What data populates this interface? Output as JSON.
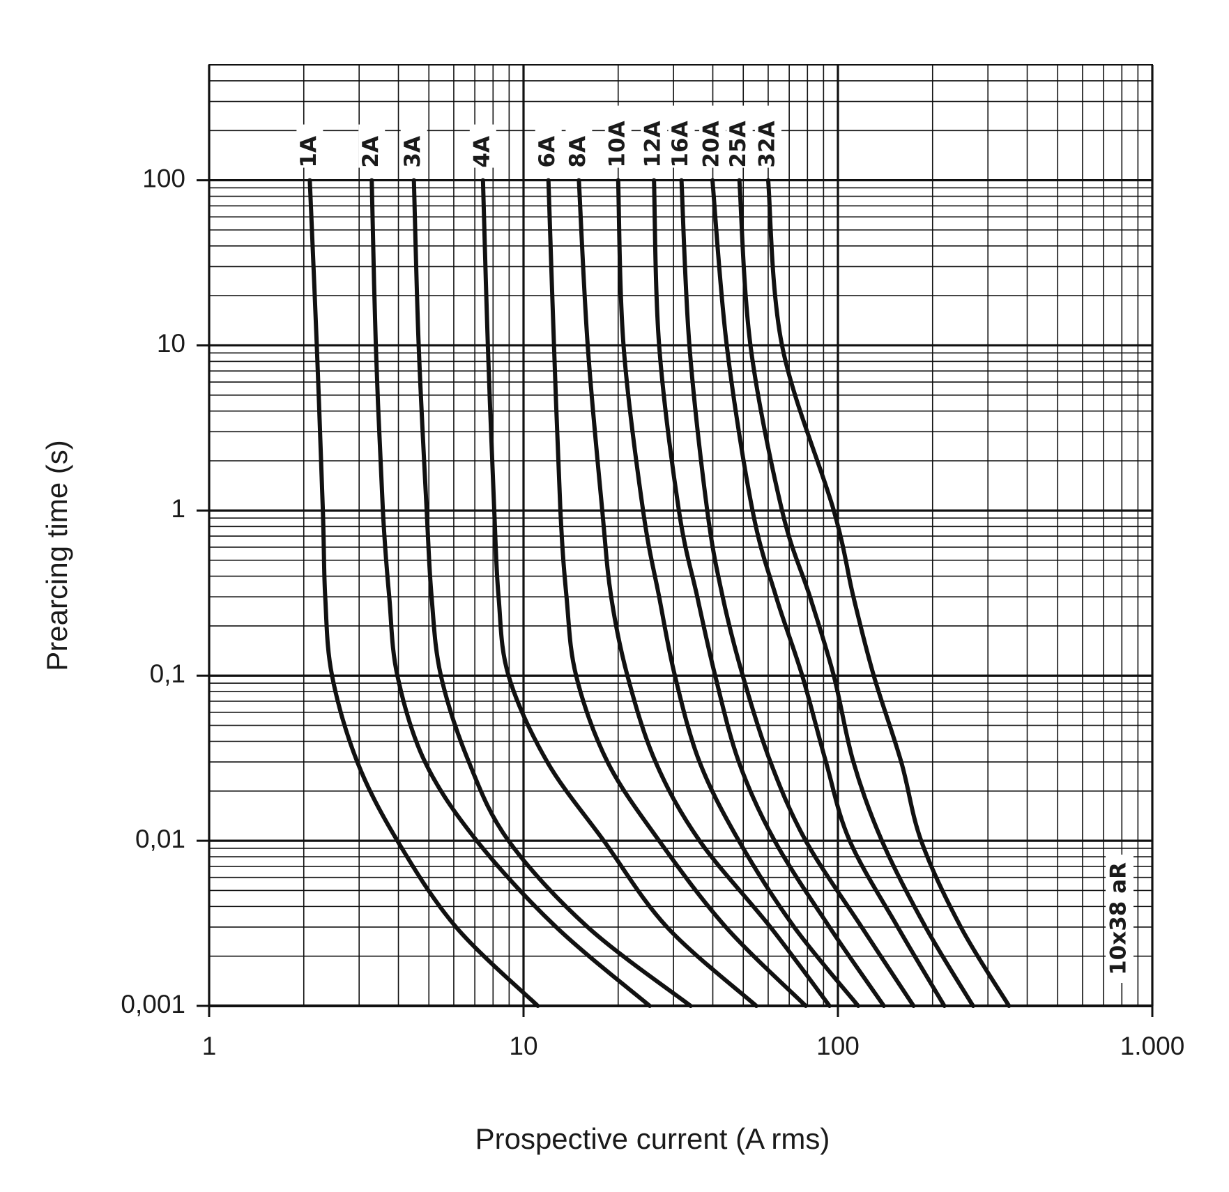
{
  "chart_data": {
    "type": "line",
    "x_label": "Prospective current (A rms)",
    "y_label": "Prearcing time (s)",
    "annotation": "10x38 aR",
    "xlim": [
      1,
      1000
    ],
    "ylim": [
      0.001,
      500
    ],
    "xlog": true,
    "ylog": true,
    "grid": true,
    "minor_grid": true,
    "color": "#111111",
    "xticks": [
      1,
      10,
      100,
      {
        "value": 1000,
        "label": "1.000"
      }
    ],
    "yticks": [
      {
        "value": 0.001,
        "label": "0,001"
      },
      {
        "value": 0.01,
        "label": "0,01"
      },
      {
        "value": 0.1,
        "label": "0,1"
      },
      1,
      10,
      100
    ],
    "series": [
      {
        "name": "1A",
        "x": [
          2.09,
          2.2,
          2.3,
          2.34,
          2.46,
          2.96,
          3.97,
          6.1,
          11.1
        ],
        "values": [
          100,
          10,
          1,
          0.3,
          0.1,
          0.03,
          0.01,
          0.003,
          0.001
        ]
      },
      {
        "name": "2A",
        "x": [
          3.29,
          3.39,
          3.57,
          3.74,
          3.97,
          4.86,
          7.1,
          12.7,
          25.2
        ],
        "values": [
          100,
          10,
          1,
          0.3,
          0.1,
          0.03,
          0.01,
          0.003,
          0.001
        ]
      },
      {
        "name": "3A",
        "x": [
          4.48,
          4.64,
          4.92,
          5.1,
          5.46,
          6.7,
          8.96,
          16,
          34
        ],
        "values": [
          100,
          10,
          1,
          0.3,
          0.1,
          0.03,
          0.01,
          0.003,
          0.001
        ]
      },
      {
        "name": "4A",
        "x": [
          7.43,
          7.7,
          8.07,
          8.33,
          8.96,
          11.9,
          18,
          28.6,
          55
        ],
        "values": [
          100,
          10,
          1,
          0.3,
          0.1,
          0.03,
          0.01,
          0.003,
          0.001
        ]
      },
      {
        "name": "6A",
        "x": [
          12,
          12.5,
          13.1,
          13.7,
          14.7,
          18.5,
          27,
          44,
          79
        ],
        "values": [
          100,
          10,
          1,
          0.3,
          0.1,
          0.03,
          0.01,
          0.003,
          0.001
        ]
      },
      {
        "name": "8A",
        "x": [
          15,
          16,
          17.8,
          19,
          21.4,
          26.3,
          36.3,
          61,
          94
        ],
        "values": [
          100,
          10,
          1,
          0.3,
          0.1,
          0.03,
          0.01,
          0.003,
          0.001
        ]
      },
      {
        "name": "10A",
        "x": [
          20,
          20.8,
          24,
          27,
          30.3,
          36.3,
          48.4,
          72.6,
          116
        ],
        "values": [
          100,
          10,
          1,
          0.3,
          0.1,
          0.03,
          0.01,
          0.003,
          0.001
        ]
      },
      {
        "name": "12A",
        "x": [
          26,
          27,
          31.2,
          35.7,
          40.7,
          48.4,
          62.9,
          94,
          140
        ],
        "values": [
          100,
          10,
          1,
          0.3,
          0.1,
          0.03,
          0.01,
          0.003,
          0.001
        ]
      },
      {
        "name": "16A",
        "x": [
          31.8,
          33.7,
          38.4,
          43,
          49.8,
          61,
          79,
          119,
          174
        ],
        "values": [
          100,
          10,
          1,
          0.3,
          0.1,
          0.03,
          0.01,
          0.003,
          0.001
        ]
      },
      {
        "name": "20A",
        "x": [
          39.9,
          44.3,
          53.5,
          63.6,
          77,
          91.6,
          109,
          155,
          218
        ],
        "values": [
          100,
          10,
          1,
          0.3,
          0.1,
          0.03,
          0.01,
          0.003,
          0.001
        ]
      },
      {
        "name": "25A",
        "x": [
          48.6,
          52.7,
          66.4,
          81.5,
          97,
          112,
          138,
          190,
          269
        ],
        "values": [
          100,
          10,
          1,
          0.3,
          0.1,
          0.03,
          0.01,
          0.003,
          0.001
        ]
      },
      {
        "name": "32A",
        "x": [
          60,
          66.4,
          97,
          112,
          130,
          159,
          184,
          246,
          350
        ],
        "values": [
          100,
          10,
          1,
          0.3,
          0.1,
          0.03,
          0.01,
          0.003,
          0.001
        ]
      }
    ]
  }
}
